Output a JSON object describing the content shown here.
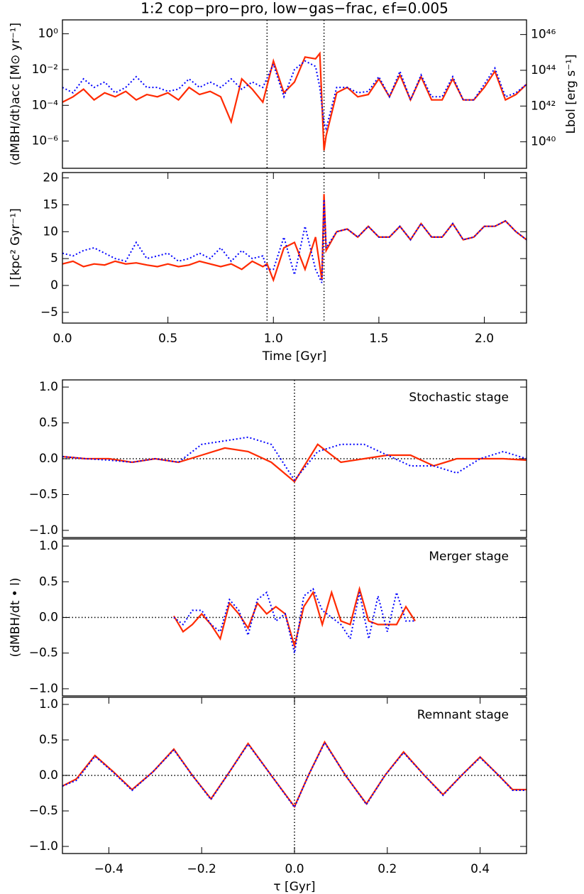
{
  "chart_data": [
    {
      "type": "line",
      "title": "1:2 cop−pro−pro, low−gas−frac, ϵf=0.005",
      "ylabel": "(dMBH/dt)acc [M⊙ yr⁻¹]",
      "y2label": "Lbol [erg s⁻¹]",
      "ylog": true,
      "xlim": [
        0,
        2.2
      ],
      "ylim": [
        3e-08,
        6
      ],
      "y2lim": [
        3.3e+38,
        6.6e+46
      ],
      "yticks": [
        {
          "value": 1,
          "label": "10⁰"
        },
        {
          "value": 0.01,
          "label": "10⁻²"
        },
        {
          "value": 0.0001,
          "label": "10⁻⁴"
        },
        {
          "value": 1e-06,
          "label": "10⁻⁶"
        }
      ],
      "y2ticks": [
        {
          "value": 1e+46,
          "label": "10⁴⁶"
        },
        {
          "value": 1e+44,
          "label": "10⁴⁴"
        },
        {
          "value": 1e+42,
          "label": "10⁴²"
        },
        {
          "value": 1e+40,
          "label": "10⁴⁰"
        }
      ],
      "vlines": [
        0.97,
        1.24
      ],
      "x": [
        0,
        0.05,
        0.1,
        0.15,
        0.2,
        0.25,
        0.3,
        0.35,
        0.4,
        0.45,
        0.5,
        0.55,
        0.6,
        0.65,
        0.7,
        0.75,
        0.8,
        0.85,
        0.9,
        0.95,
        1.0,
        1.05,
        1.1,
        1.15,
        1.2,
        1.22,
        1.24,
        1.25,
        1.3,
        1.35,
        1.4,
        1.45,
        1.5,
        1.55,
        1.6,
        1.65,
        1.7,
        1.75,
        1.8,
        1.85,
        1.9,
        1.95,
        2.0,
        2.05,
        2.1,
        2.15,
        2.2
      ],
      "series": [
        {
          "color": "#ff2a00",
          "dash": "solid",
          "values": [
            0.00015,
            0.0003,
            0.0008,
            0.0002,
            0.0005,
            0.0003,
            0.0006,
            0.0002,
            0.0004,
            0.0003,
            0.0005,
            0.0002,
            0.001,
            0.0004,
            0.0006,
            0.0003,
            1.2e-05,
            0.003,
            0.0008,
            0.00015,
            0.03,
            0.0005,
            0.002,
            0.05,
            0.04,
            0.08,
            3e-07,
            2e-06,
            0.0005,
            0.001,
            0.0003,
            0.0004,
            0.003,
            0.0003,
            0.005,
            0.0002,
            0.004,
            0.0002,
            0.0002,
            0.003,
            0.0002,
            0.0002,
            0.001,
            0.008,
            0.0002,
            0.0004,
            0.0015
          ]
        },
        {
          "color": "#0000ff",
          "dash": "dotted",
          "values": [
            0.001,
            0.0005,
            0.003,
            0.001,
            0.002,
            0.0005,
            0.001,
            0.004,
            0.001,
            0.001,
            0.0006,
            0.0008,
            0.003,
            0.001,
            0.002,
            0.001,
            0.003,
            0.0008,
            0.002,
            0.001,
            0.02,
            0.0003,
            0.01,
            0.03,
            0.015,
            0.001,
            1e-05,
            5e-06,
            0.001,
            0.001,
            0.0005,
            0.0006,
            0.004,
            0.0003,
            0.008,
            0.0002,
            0.005,
            0.0003,
            0.0003,
            0.004,
            0.0002,
            0.0002,
            0.0015,
            0.012,
            0.0003,
            0.0005,
            0.0015
          ]
        }
      ]
    },
    {
      "type": "line",
      "ylabel": "l [kpc² Gyr⁻¹]",
      "xlabel": "Time [Gyr]",
      "xlim": [
        0,
        2.2
      ],
      "ylim": [
        -7,
        21
      ],
      "xticks": [
        {
          "value": 0,
          "label": "0.0"
        },
        0.5,
        {
          "value": 1,
          "label": "1.0"
        },
        1.5,
        {
          "value": 2,
          "label": "2.0"
        }
      ],
      "yticks": [
        {
          "value": -5,
          "label": "−5"
        },
        0,
        5,
        10,
        15,
        20
      ],
      "vlines": [
        0.97,
        1.24
      ],
      "x": [
        0,
        0.05,
        0.1,
        0.15,
        0.2,
        0.25,
        0.3,
        0.35,
        0.4,
        0.45,
        0.5,
        0.55,
        0.6,
        0.65,
        0.7,
        0.75,
        0.8,
        0.85,
        0.9,
        0.95,
        0.97,
        1.0,
        1.05,
        1.1,
        1.15,
        1.2,
        1.23,
        1.24,
        1.25,
        1.3,
        1.35,
        1.4,
        1.45,
        1.5,
        1.55,
        1.6,
        1.65,
        1.7,
        1.75,
        1.8,
        1.85,
        1.9,
        1.95,
        2.0,
        2.05,
        2.1,
        2.15,
        2.2
      ],
      "series": [
        {
          "color": "#ff2a00",
          "dash": "solid",
          "values": [
            4,
            4.5,
            3.5,
            4,
            3.8,
            4.5,
            4,
            4.2,
            3.8,
            3.5,
            4,
            3.5,
            3.8,
            4.5,
            4,
            3.5,
            4,
            3,
            4.5,
            3.5,
            4,
            1,
            7,
            8,
            3,
            9,
            1,
            17,
            6.5,
            10,
            10.5,
            9,
            11,
            9,
            9,
            11,
            8.5,
            11.5,
            9,
            9,
            11.5,
            8.5,
            9,
            11,
            11,
            12,
            10,
            8.5
          ]
        },
        {
          "color": "#0000ff",
          "dash": "dotted",
          "values": [
            6,
            5.5,
            6.5,
            7,
            6,
            5,
            4.5,
            8,
            5,
            5.5,
            6,
            4.5,
            5,
            6,
            5,
            7,
            4.5,
            6.5,
            5,
            5.5,
            3,
            3,
            9,
            2,
            11,
            3,
            0.5,
            16,
            7,
            10,
            10.5,
            9,
            11,
            9,
            9,
            11,
            8.5,
            11.5,
            9,
            9,
            11.5,
            8.5,
            9,
            11,
            11,
            12,
            10,
            8.5
          ]
        }
      ]
    },
    {
      "type": "line",
      "label": "Stochastic stage",
      "xlim": [
        -0.5,
        0.5
      ],
      "ylim": [
        -1.1,
        1.1
      ],
      "yticks": [
        {
          "value": -1,
          "label": "−1.0"
        },
        {
          "value": -0.5,
          "label": "−0.5"
        },
        {
          "value": 0,
          "label": "0.0"
        },
        0.5,
        {
          "value": 1,
          "label": "1.0"
        }
      ],
      "vlines": [
        0
      ],
      "hlines": [
        0
      ],
      "x": [
        -0.5,
        -0.45,
        -0.4,
        -0.35,
        -0.3,
        -0.25,
        -0.2,
        -0.15,
        -0.1,
        -0.05,
        0,
        0.05,
        0.1,
        0.15,
        0.2,
        0.25,
        0.3,
        0.35,
        0.4,
        0.45,
        0.5
      ],
      "series": [
        {
          "color": "#ff2a00",
          "dash": "solid",
          "values": [
            0.03,
            0,
            0,
            -0.05,
            0,
            -0.05,
            0.05,
            0.15,
            0.1,
            -0.05,
            -0.32,
            0.2,
            -0.05,
            0,
            0.05,
            0.05,
            -0.1,
            0,
            0,
            0,
            -0.02
          ]
        },
        {
          "color": "#0000ff",
          "dash": "dotted",
          "values": [
            0.03,
            0,
            -0.02,
            -0.05,
            0,
            -0.05,
            0.2,
            0.25,
            0.3,
            0.2,
            -0.3,
            0.1,
            0.2,
            0.2,
            0.05,
            -0.1,
            -0.1,
            -0.2,
            0,
            0.1,
            0
          ]
        }
      ]
    },
    {
      "type": "line",
      "label": "Merger stage",
      "ylabel": "(dMBH/dt • l)",
      "xlim": [
        -0.5,
        0.5
      ],
      "ylim": [
        -1.1,
        1.1
      ],
      "yticks": [
        {
          "value": -1,
          "label": "−1.0"
        },
        {
          "value": -0.5,
          "label": "−0.5"
        },
        {
          "value": 0,
          "label": "0.0"
        },
        0.5,
        {
          "value": 1,
          "label": "1.0"
        }
      ],
      "vlines": [
        0
      ],
      "hlines": [
        0
      ],
      "x": [
        -0.26,
        -0.24,
        -0.22,
        -0.2,
        -0.18,
        -0.16,
        -0.14,
        -0.12,
        -0.1,
        -0.08,
        -0.06,
        -0.04,
        -0.02,
        0,
        0.02,
        0.04,
        0.06,
        0.08,
        0.1,
        0.12,
        0.14,
        0.16,
        0.18,
        0.2,
        0.22,
        0.24,
        0.26
      ],
      "series": [
        {
          "color": "#ff2a00",
          "dash": "solid",
          "values": [
            0.02,
            -0.2,
            -0.1,
            0.05,
            -0.1,
            -0.3,
            0.2,
            0.05,
            -0.15,
            0.2,
            0.05,
            0.15,
            0.05,
            -0.4,
            0.15,
            0.35,
            -0.1,
            0.35,
            -0.05,
            -0.1,
            0.4,
            -0.05,
            -0.1,
            -0.1,
            -0.1,
            0.15,
            -0.05
          ]
        },
        {
          "color": "#0000ff",
          "dash": "dotted",
          "values": [
            0,
            -0.1,
            0.1,
            0.1,
            -0.1,
            -0.2,
            0.25,
            0.1,
            -0.25,
            0.25,
            0.35,
            -0.05,
            0.05,
            -0.5,
            0.3,
            0.4,
            0.1,
            0,
            -0.1,
            -0.3,
            0.35,
            -0.3,
            0.3,
            -0.2,
            0.35,
            -0.05,
            -0.05
          ]
        }
      ]
    },
    {
      "type": "line",
      "label": "Remnant stage",
      "xlabel": "τ [Gyr]",
      "xlim": [
        -0.5,
        0.5
      ],
      "ylim": [
        -1.1,
        1.1
      ],
      "xticks": [
        {
          "value": -0.4,
          "label": "−0.4"
        },
        {
          "value": -0.2,
          "label": "−0.2"
        },
        {
          "value": 0,
          "label": "0.0"
        },
        0.2,
        0.4
      ],
      "yticks": [
        {
          "value": -1,
          "label": "−1.0"
        },
        {
          "value": -0.5,
          "label": "−0.5"
        },
        {
          "value": 0,
          "label": "0.0"
        },
        0.5,
        {
          "value": 1,
          "label": "1.0"
        }
      ],
      "vlines": [
        0
      ],
      "hlines": [
        0
      ],
      "x": [
        -0.5,
        -0.47,
        -0.43,
        -0.39,
        -0.35,
        -0.305,
        -0.26,
        -0.22,
        -0.18,
        -0.14,
        -0.1,
        -0.05,
        0,
        0.03,
        0.065,
        0.11,
        0.155,
        0.195,
        0.235,
        0.28,
        0.32,
        0.36,
        0.4,
        0.44,
        0.47,
        0.5
      ],
      "series": [
        {
          "color": "#ff2a00",
          "dash": "solid",
          "values": [
            -0.15,
            -0.05,
            0.28,
            0.05,
            -0.2,
            0.05,
            0.37,
            0,
            -0.33,
            0.05,
            0.45,
            0,
            -0.44,
            0,
            0.47,
            0,
            -0.4,
            0,
            0.33,
            0,
            -0.27,
            0,
            0.26,
            0,
            -0.2,
            -0.2
          ]
        },
        {
          "color": "#0000ff",
          "dash": "dotted",
          "values": [
            -0.15,
            -0.07,
            0.27,
            0.04,
            -0.21,
            0.05,
            0.36,
            0,
            -0.34,
            0.05,
            0.44,
            0,
            -0.45,
            0,
            0.46,
            0,
            -0.41,
            0,
            0.32,
            0,
            -0.28,
            0,
            0.25,
            0,
            -0.21,
            -0.21
          ]
        }
      ]
    }
  ]
}
